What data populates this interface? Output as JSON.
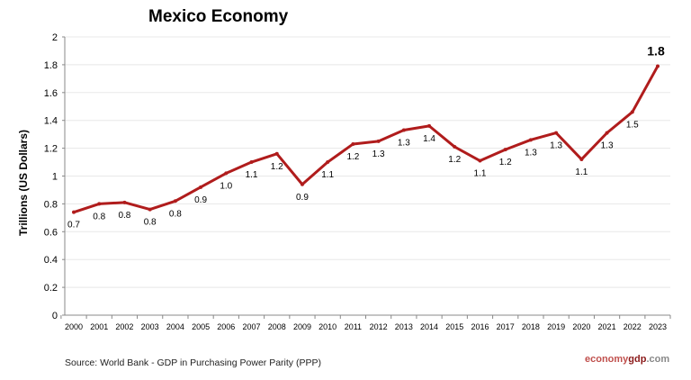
{
  "chart_data": {
    "type": "line",
    "title": "Mexico Economy",
    "ylabel": "Trillions (US Dollars)",
    "xlabel": "",
    "ylim": [
      0,
      2
    ],
    "yticks": [
      "0",
      "0.2",
      "0.4",
      "0.6",
      "0.8",
      "1",
      "1.2",
      "1.4",
      "1.6",
      "1.8",
      "2"
    ],
    "grid": true,
    "legend": "none",
    "color": "#b01c1c",
    "x": [
      "2000",
      "2001",
      "2002",
      "2003",
      "2004",
      "2005",
      "2006",
      "2007",
      "2008",
      "2009",
      "2010",
      "2011",
      "2012",
      "2013",
      "2014",
      "2015",
      "2016",
      "2017",
      "2018",
      "2019",
      "2020",
      "2021",
      "2022",
      "2023"
    ],
    "values": [
      0.74,
      0.8,
      0.81,
      0.76,
      0.82,
      0.92,
      1.02,
      1.1,
      1.16,
      0.94,
      1.1,
      1.23,
      1.25,
      1.33,
      1.36,
      1.21,
      1.11,
      1.19,
      1.26,
      1.31,
      1.12,
      1.31,
      1.46,
      1.79
    ],
    "data_labels": [
      "0.7",
      "0.8",
      "0.8",
      "0.8",
      "0.8",
      "0.9",
      "1.0",
      "1.1",
      "1.2",
      "0.9",
      "1.1",
      "1.2",
      "1.3",
      "1.3",
      "1.4",
      "1.2",
      "1.1",
      "1.2",
      "1.3",
      "1.3",
      "1.1",
      "1.3",
      "1.5",
      "1.8"
    ]
  },
  "source": "Source: World Bank -  GDP in Purchasing Power Parity (PPP)",
  "brand": {
    "part1": "economy",
    "part2": "gdp",
    "part3": ".com"
  }
}
